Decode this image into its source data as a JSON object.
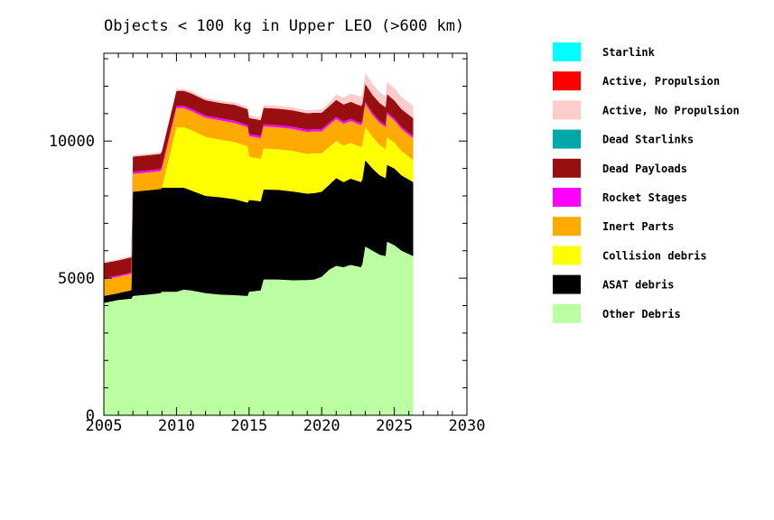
{
  "chart_data": {
    "type": "area",
    "stacked": true,
    "title": "Objects < 100 kg in Upper LEO (>600 km)",
    "xlabel": "",
    "ylabel": "",
    "xlim": [
      2005,
      2030
    ],
    "ylim": [
      0,
      13200
    ],
    "x_ticks": [
      2005,
      2010,
      2015,
      2020,
      2025,
      2030
    ],
    "y_ticks": [
      0,
      5000,
      10000
    ],
    "grid": false,
    "legend_position": "right",
    "x": [
      2005,
      2006,
      2006.9,
      2007,
      2008,
      2008.9,
      2009,
      2010,
      2010.5,
      2011,
      2012,
      2013,
      2014,
      2014.9,
      2015,
      2015.8,
      2016,
      2017,
      2018,
      2019,
      2019.5,
      2020,
      2020.5,
      2021,
      2021.5,
      2022,
      2022.7,
      2022.8,
      2023,
      2023.5,
      2024,
      2024.4,
      2024.5,
      2025,
      2025.5,
      2026.3
    ],
    "series": [
      {
        "name": "Other Debris",
        "color": "#bbffa2",
        "values": [
          4100,
          4200,
          4250,
          4350,
          4400,
          4450,
          4500,
          4500,
          4580,
          4550,
          4450,
          4400,
          4380,
          4350,
          4500,
          4550,
          4950,
          4950,
          4920,
          4930,
          4950,
          5050,
          5300,
          5450,
          5400,
          5480,
          5400,
          5500,
          6150,
          6000,
          5850,
          5800,
          6330,
          6200,
          6000,
          5800
        ]
      },
      {
        "name": "ASAT debris",
        "color": "#000000",
        "values": [
          250,
          250,
          310,
          3800,
          3800,
          3800,
          3800,
          3800,
          3720,
          3650,
          3550,
          3550,
          3500,
          3400,
          3350,
          3250,
          3280,
          3270,
          3240,
          3150,
          3150,
          3100,
          3100,
          3200,
          3100,
          3150,
          3100,
          3100,
          3150,
          3000,
          2900,
          2850,
          2800,
          2800,
          2750,
          2700
        ]
      },
      {
        "name": "Collision debris",
        "color": "#ffff00",
        "values": [
          0,
          0,
          0,
          0,
          0,
          0,
          0,
          2200,
          2200,
          2200,
          2150,
          2100,
          2080,
          2050,
          1580,
          1550,
          1500,
          1480,
          1480,
          1450,
          1450,
          1400,
          1380,
          1350,
          1330,
          1300,
          1280,
          1250,
          1200,
          1150,
          1100,
          1050,
          1000,
          950,
          880,
          800
        ]
      },
      {
        "name": "Inert Parts",
        "color": "#ffaa00",
        "values": [
          600,
          600,
          600,
          650,
          650,
          650,
          700,
          700,
          700,
          700,
          700,
          700,
          700,
          700,
          750,
          750,
          800,
          800,
          800,
          800,
          800,
          800,
          800,
          800,
          800,
          800,
          800,
          800,
          850,
          800,
          800,
          800,
          850,
          800,
          800,
          800
        ]
      },
      {
        "name": "Rocket Stages",
        "color": "#ff00ff",
        "values": [
          50,
          50,
          50,
          80,
          80,
          80,
          80,
          80,
          80,
          80,
          80,
          80,
          80,
          80,
          80,
          80,
          80,
          80,
          80,
          80,
          80,
          80,
          80,
          80,
          80,
          80,
          80,
          80,
          80,
          80,
          80,
          80,
          80,
          80,
          80,
          80
        ]
      },
      {
        "name": "Dead Payloads",
        "color": "#990e0e",
        "values": [
          550,
          550,
          550,
          550,
          550,
          550,
          550,
          550,
          550,
          560,
          560,
          560,
          580,
          580,
          580,
          580,
          600,
          600,
          600,
          600,
          600,
          600,
          600,
          620,
          620,
          620,
          620,
          620,
          650,
          650,
          650,
          650,
          650,
          650,
          650,
          650
        ]
      },
      {
        "name": "Dead Starlinks",
        "color": "#00a8a8",
        "values": [
          0,
          0,
          0,
          0,
          0,
          0,
          0,
          0,
          0,
          0,
          0,
          0,
          0,
          0,
          0,
          0,
          0,
          0,
          0,
          0,
          0,
          0,
          0,
          0,
          0,
          0,
          0,
          0,
          0,
          0,
          0,
          0,
          0,
          0,
          0,
          0
        ]
      },
      {
        "name": "Active, No Propulsion",
        "color": "#ffcccc",
        "values": [
          50,
          50,
          50,
          60,
          60,
          60,
          70,
          70,
          70,
          80,
          80,
          80,
          90,
          90,
          100,
          100,
          100,
          110,
          110,
          110,
          110,
          120,
          130,
          200,
          250,
          300,
          330,
          330,
          400,
          400,
          400,
          400,
          450,
          450,
          450,
          450
        ]
      },
      {
        "name": "Active, Propulsion",
        "color": "#ff0000",
        "values": [
          0,
          0,
          0,
          0,
          0,
          0,
          0,
          0,
          0,
          0,
          0,
          0,
          0,
          0,
          0,
          0,
          0,
          0,
          0,
          0,
          0,
          0,
          0,
          0,
          0,
          0,
          0,
          0,
          0,
          0,
          0,
          0,
          0,
          0,
          0,
          0
        ]
      },
      {
        "name": "Starlink",
        "color": "#00ffff",
        "values": [
          0,
          0,
          0,
          0,
          0,
          0,
          0,
          0,
          0,
          0,
          0,
          0,
          0,
          0,
          0,
          0,
          0,
          0,
          0,
          0,
          0,
          0,
          0,
          0,
          0,
          0,
          0,
          0,
          0,
          0,
          0,
          0,
          0,
          0,
          0,
          0
        ]
      }
    ],
    "legend_order": [
      "Starlink",
      "Active, Propulsion",
      "Active, No Propulsion",
      "Dead Starlinks",
      "Dead Payloads",
      "Rocket Stages",
      "Inert Parts",
      "Collision debris",
      "ASAT debris",
      "Other Debris"
    ]
  }
}
